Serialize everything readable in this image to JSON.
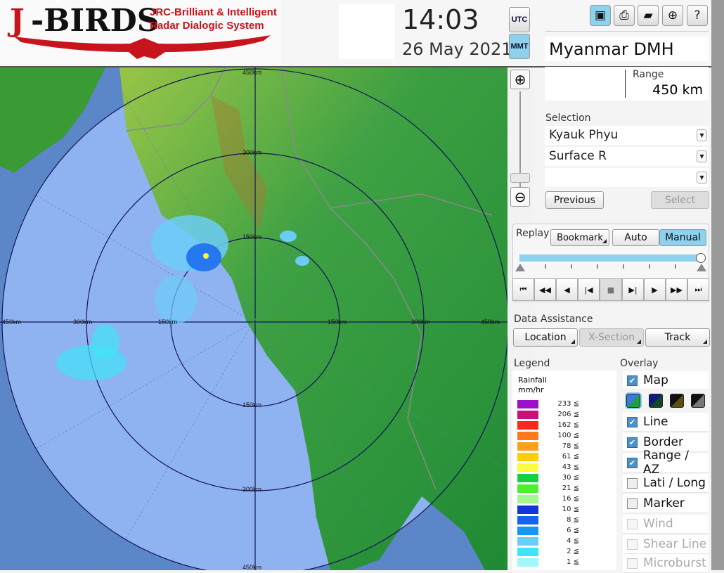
{
  "app": {
    "logo_j": "J",
    "logo_birds": "-BIRDS",
    "logo_sub1": "JRC-Brilliant & Intelligent",
    "logo_sub2": "Radar Dialogic System",
    "brand_color": "#c8141c"
  },
  "clock": {
    "time": "14:03",
    "date": "26 May 2021",
    "tz": [
      "UTC",
      "MMT"
    ],
    "active_tz": "MMT"
  },
  "toolbar": {
    "icons": [
      "save-icon",
      "print-icon",
      "open-folder-icon",
      "add-window-icon",
      "help-icon"
    ],
    "help_glyph": "?"
  },
  "station": "Myanmar DMH",
  "range": {
    "label": "Range",
    "value": "450 km"
  },
  "selection": {
    "label": "Selection",
    "site": "Kyauk Phyu",
    "product": "Surface R",
    "third": "",
    "previous": "Previous",
    "select": "Select"
  },
  "replay": {
    "label": "Replay",
    "bookmark": "Bookmark",
    "auto": "Auto",
    "manual": "Manual",
    "mode": "Manual",
    "position": 1.0,
    "buttons": [
      "first",
      "fast-back",
      "back",
      "step-back",
      "stop",
      "step-forward",
      "play",
      "fast-forward",
      "last"
    ]
  },
  "data_assistance": {
    "label": "Data Assistance",
    "location": "Location",
    "xsection": "X-Section",
    "track": "Track"
  },
  "legend": {
    "label": "Legend",
    "title1": "Rainfall",
    "title2": "mm/hr",
    "items": [
      {
        "value": "233 ≦",
        "color": "#9a10c8"
      },
      {
        "value": "206 ≦",
        "color": "#c8107a"
      },
      {
        "value": "162 ≦",
        "color": "#f8281c"
      },
      {
        "value": "100 ≦",
        "color": "#fc7a1c"
      },
      {
        "value": "78 ≦",
        "color": "#fca01c"
      },
      {
        "value": "61 ≦",
        "color": "#fcd000"
      },
      {
        "value": "43 ≦",
        "color": "#fcfc40"
      },
      {
        "value": "30 ≦",
        "color": "#14d040"
      },
      {
        "value": "21 ≦",
        "color": "#4cf02c"
      },
      {
        "value": "16 ≦",
        "color": "#a4f890"
      },
      {
        "value": "10 ≦",
        "color": "#1038d8"
      },
      {
        "value": "8 ≦",
        "color": "#1464f0"
      },
      {
        "value": "6 ≦",
        "color": "#1894f4"
      },
      {
        "value": "4 ≦",
        "color": "#6cccf8"
      },
      {
        "value": "2 ≦",
        "color": "#40e4f8"
      },
      {
        "value": "1 ≦",
        "color": "#a0f8fc"
      }
    ]
  },
  "overlay": {
    "label": "Overlay",
    "items": [
      {
        "label": "Map",
        "checked": true,
        "enabled": true
      },
      {
        "label": "Line",
        "checked": true,
        "enabled": true
      },
      {
        "label": "Border",
        "checked": true,
        "enabled": true
      },
      {
        "label": "Range / AZ",
        "checked": true,
        "enabled": true
      },
      {
        "label": "Lati / Long",
        "checked": false,
        "enabled": true
      },
      {
        "label": "Marker",
        "checked": false,
        "enabled": true
      },
      {
        "label": "Wind",
        "checked": false,
        "enabled": false
      },
      {
        "label": "Shear Line",
        "checked": false,
        "enabled": false
      },
      {
        "label": "Microburst",
        "checked": false,
        "enabled": false
      }
    ],
    "map_themes": [
      "blue-green",
      "navy-green",
      "black-olive",
      "black-gray"
    ]
  },
  "map": {
    "range_labels": {
      "r150": "150km",
      "r300": "300km",
      "r450": "450km"
    }
  }
}
